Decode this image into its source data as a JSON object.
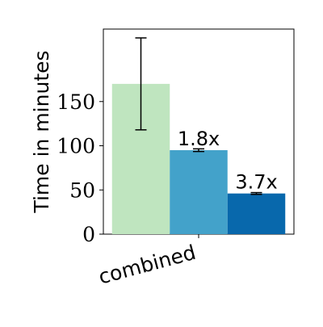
{
  "chart_data": {
    "type": "bar",
    "title": "",
    "xlabel": "",
    "ylabel": "Time in minutes",
    "categories": [
      "combined"
    ],
    "ylim": [
      0,
      232
    ],
    "yticks": [
      0,
      50,
      100,
      150
    ],
    "grid": false,
    "legend": "none",
    "series": [
      {
        "values": [
          170
        ],
        "error": [
          52
        ],
        "color": "#bfe5bf",
        "label": ""
      },
      {
        "values": [
          95
        ],
        "error": [
          1.5
        ],
        "color": "#43a2ca",
        "label": "1.8x"
      },
      {
        "values": [
          46
        ],
        "error": [
          1
        ],
        "color": "#0868ac",
        "label": "3.7x"
      }
    ]
  }
}
